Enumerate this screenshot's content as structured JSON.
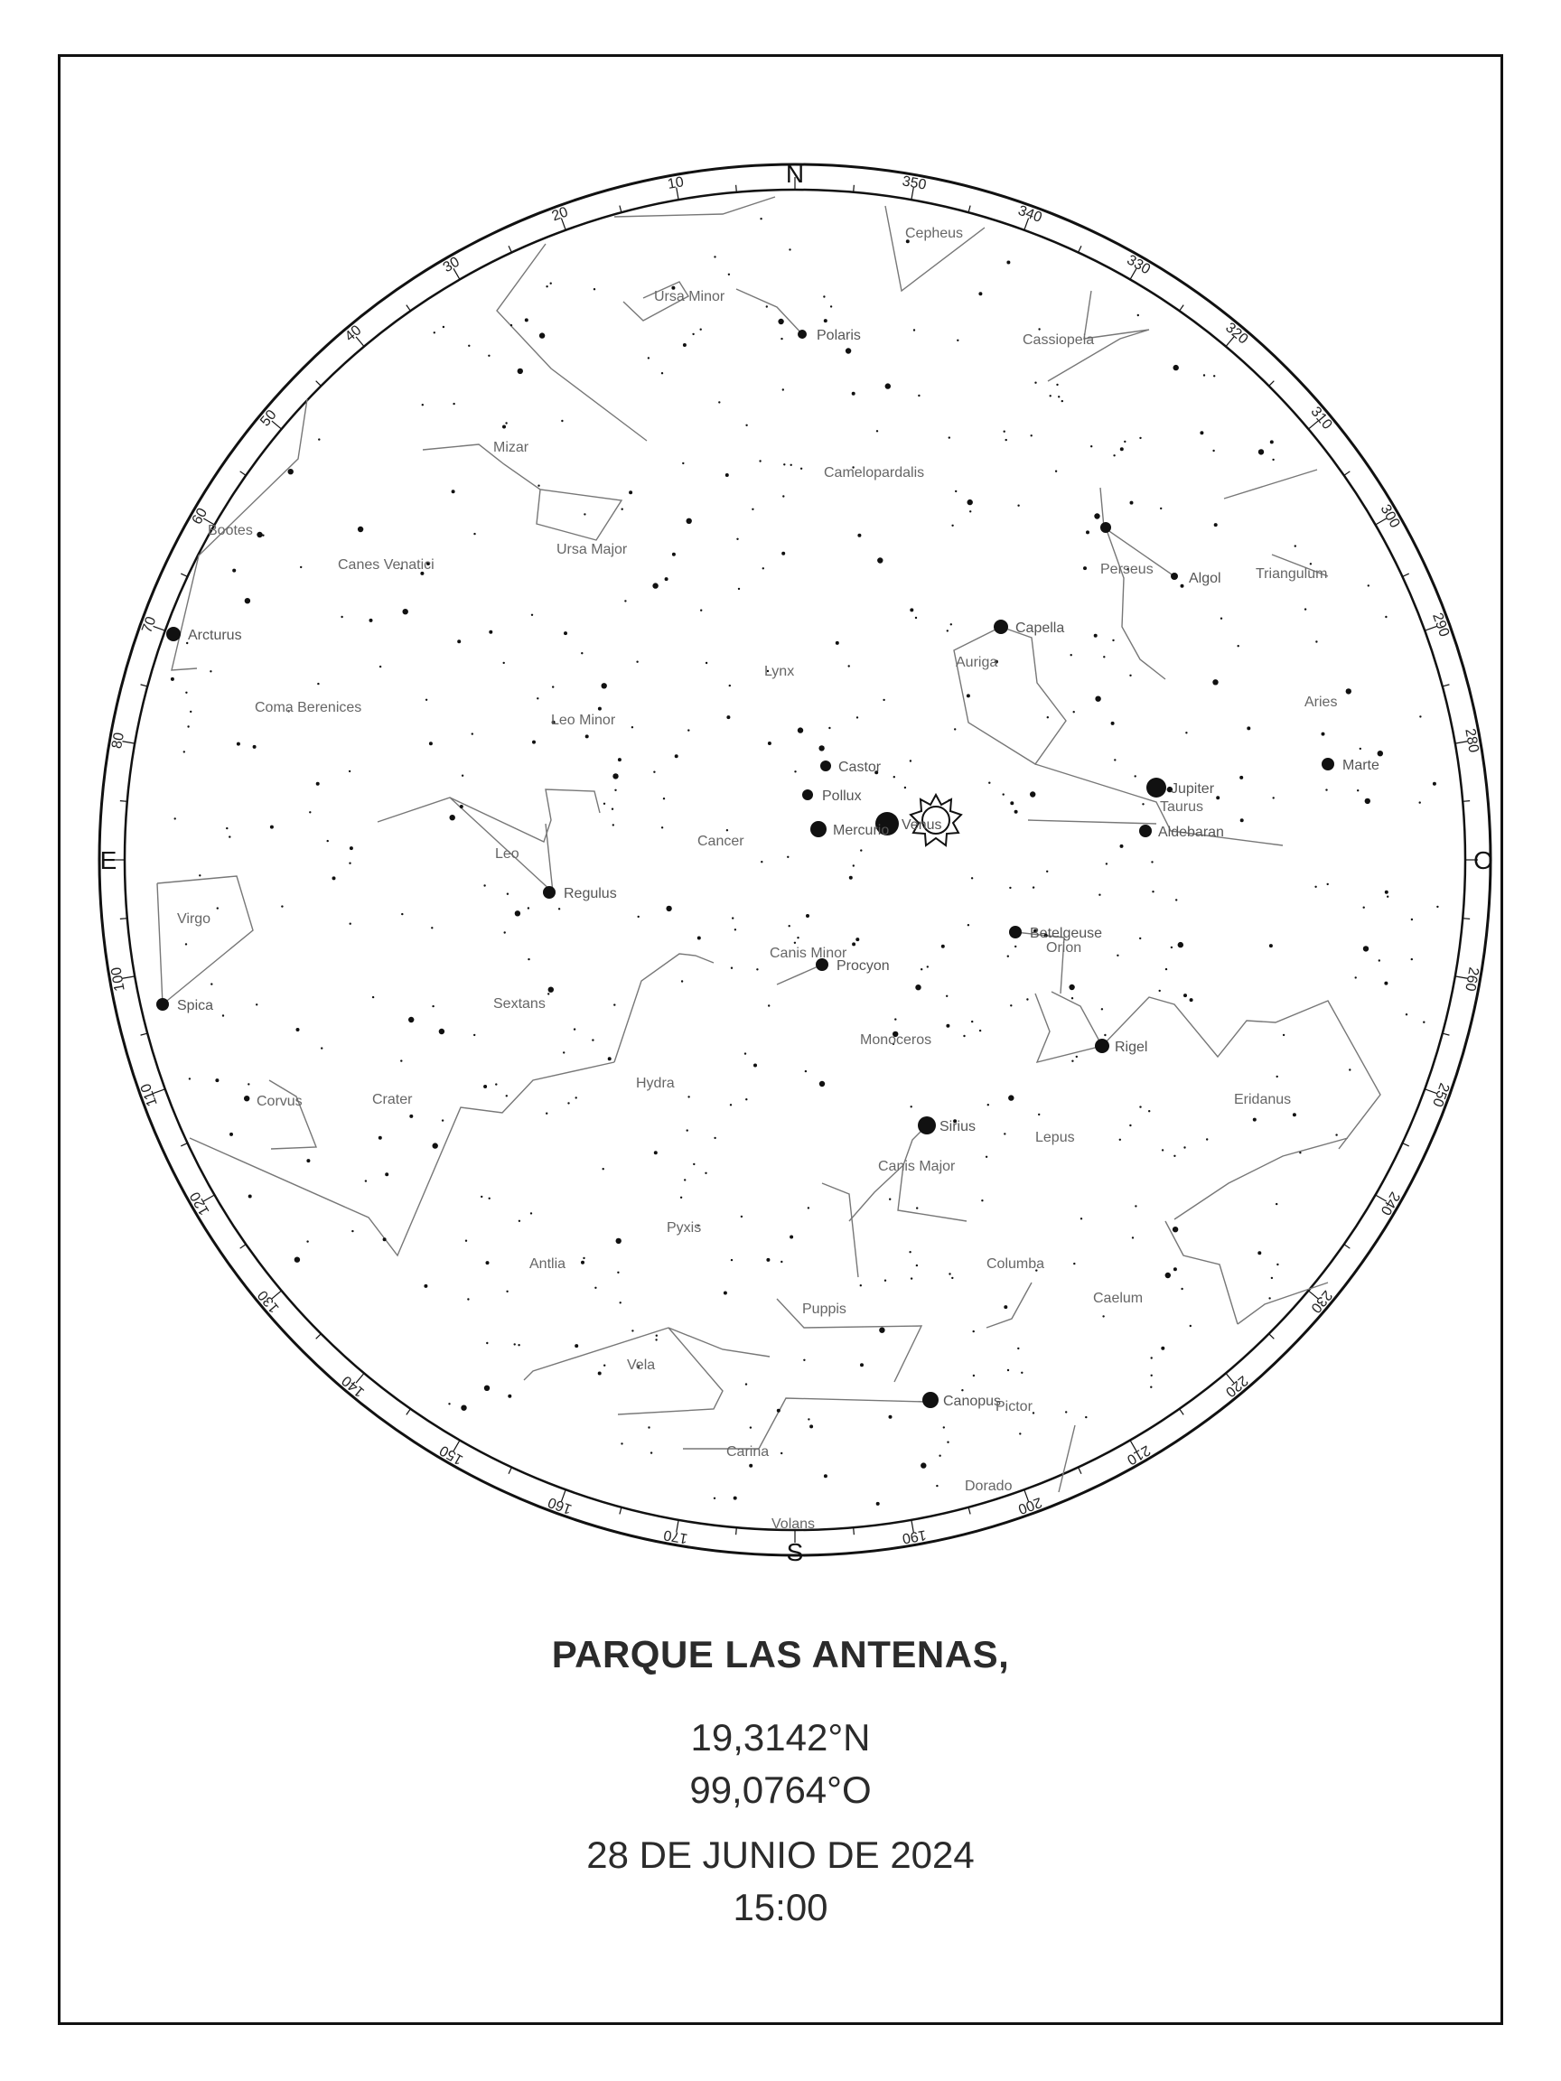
{
  "location": {
    "name": "PARQUE LAS ANTENAS,",
    "lat": "19,3142°N",
    "lon": "99,0764°O"
  },
  "datetime": {
    "date": "28 DE JUNIO DE 2024",
    "time": "15:00"
  },
  "compass": {
    "north": "N",
    "south": "S",
    "east": "E",
    "west": "O"
  },
  "degree_labels": [
    "10",
    "20",
    "30",
    "40",
    "50",
    "60",
    "70",
    "80",
    "100",
    "110",
    "120",
    "130",
    "140",
    "150",
    "160",
    "170",
    "190",
    "200",
    "210",
    "220",
    "230",
    "240",
    "250",
    "260",
    "280",
    "290",
    "300",
    "310",
    "320",
    "330",
    "340",
    "350"
  ],
  "constellations": [
    "Cepheus",
    "Ursa Minor",
    "Cassiopeia",
    "Camelopardalis",
    "Mizar",
    "Ursa Major",
    "Bootes",
    "Canes Venatici",
    "Perseus",
    "Triangulum",
    "Auriga",
    "Lynx",
    "Coma Berenices",
    "Leo Minor",
    "Aries",
    "Taurus",
    "Leo",
    "Cancer",
    "Virgo",
    "Canis Minor",
    "Orion",
    "Sextans",
    "Monoceros",
    "Hydra",
    "Corvus",
    "Crater",
    "Eridanus",
    "Lepus",
    "Canis Major",
    "Pyxis",
    "Antlia",
    "Columba",
    "Caelum",
    "Puppis",
    "Vela",
    "Pictor",
    "Carina",
    "Dorado",
    "Volans"
  ],
  "stars": [
    "Polaris",
    "Capella",
    "Algol",
    "Arcturus",
    "Castor",
    "Pollux",
    "Jupiter",
    "Marte",
    "Aldebaran",
    "Regulus",
    "Betelgeuse",
    "Procyon",
    "Spica",
    "Rigel",
    "Sirius",
    "Canopus"
  ],
  "planets_near_center": [
    "Mercurio",
    "Venus"
  ],
  "colors": {
    "ink": "#111111",
    "label": "#555555",
    "text": "#2b2b2b"
  }
}
